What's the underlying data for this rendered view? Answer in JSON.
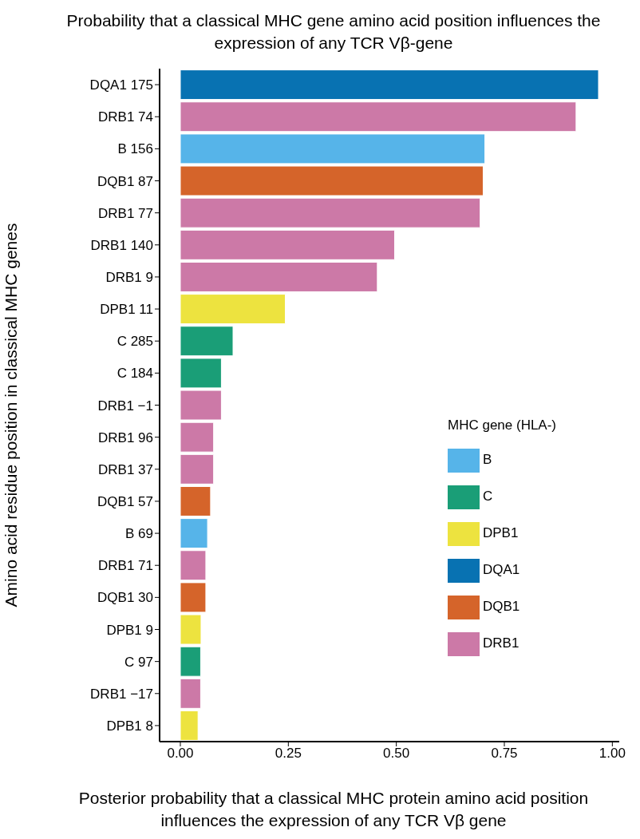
{
  "chart_data": {
    "type": "bar",
    "orientation": "horizontal",
    "stacked": true,
    "title": "Probability that a classical MHC gene amino acid position influences the expression of any TCR Vβ-gene",
    "xlabel": "Posterior probability that a classical MHC protein amino acid position influences the expression of any TCR Vβ gene",
    "ylabel": "Amino acid residue position in classical MHC genes",
    "legend_title": "MHC gene (HLA-)",
    "legend": "right",
    "grid": false,
    "categories": [
      "DQA1 175",
      "DRB1 74",
      "B 156",
      "DQB1 87",
      "DRB1 77",
      "DRB1 140",
      "DRB1 9",
      "DPB1 11",
      "C 285",
      "C 184",
      "DRB1 −1",
      "DRB1 96",
      "DRB1 37",
      "DQB1 57",
      "B 69",
      "DRB1 71",
      "DQB1 30",
      "DPB1 9",
      "C 97",
      "DRB1 −17",
      "DPB1 8"
    ],
    "xlim": [
      -0.048,
      1.016
    ],
    "xticks": [
      {
        "value": 0,
        "label": "0.00"
      },
      {
        "value": 0.25,
        "label": "0.25"
      },
      {
        "value": 0.5,
        "label": "0.50"
      },
      {
        "value": 0.75,
        "label": "0.75"
      },
      {
        "value": 1,
        "label": "1.00"
      }
    ],
    "series": [
      {
        "name": "B",
        "color": "#56b4e9",
        "values": [
          null,
          null,
          0.705,
          null,
          null,
          null,
          null,
          null,
          null,
          null,
          null,
          null,
          null,
          null,
          0.063,
          null,
          null,
          null,
          null,
          null,
          null
        ]
      },
      {
        "name": "C",
        "color": "#1a9e77",
        "values": [
          null,
          null,
          null,
          null,
          null,
          null,
          null,
          null,
          0.122,
          0.095,
          null,
          null,
          null,
          null,
          null,
          null,
          null,
          null,
          0.047,
          null,
          null
        ]
      },
      {
        "name": "DPB1",
        "color": "#ede33f",
        "values": [
          null,
          null,
          null,
          null,
          null,
          null,
          null,
          0.243,
          null,
          null,
          null,
          null,
          null,
          null,
          null,
          null,
          null,
          0.048,
          null,
          null,
          0.041
        ]
      },
      {
        "name": "DQA1",
        "color": "#0872b2",
        "values": [
          0.968,
          null,
          null,
          null,
          null,
          null,
          null,
          null,
          null,
          null,
          null,
          null,
          null,
          null,
          null,
          null,
          null,
          null,
          null,
          null,
          null
        ]
      },
      {
        "name": "DQB1",
        "color": "#d5642a",
        "values": [
          null,
          null,
          null,
          0.701,
          null,
          null,
          null,
          null,
          null,
          null,
          null,
          null,
          null,
          0.07,
          null,
          null,
          0.059,
          null,
          null,
          null,
          null
        ]
      },
      {
        "name": "DRB1",
        "color": "#cc79a7",
        "values": [
          null,
          0.916,
          null,
          null,
          0.694,
          0.496,
          0.456,
          null,
          null,
          null,
          0.095,
          0.077,
          0.077,
          null,
          null,
          0.059,
          null,
          null,
          null,
          0.047,
          null
        ]
      }
    ]
  }
}
